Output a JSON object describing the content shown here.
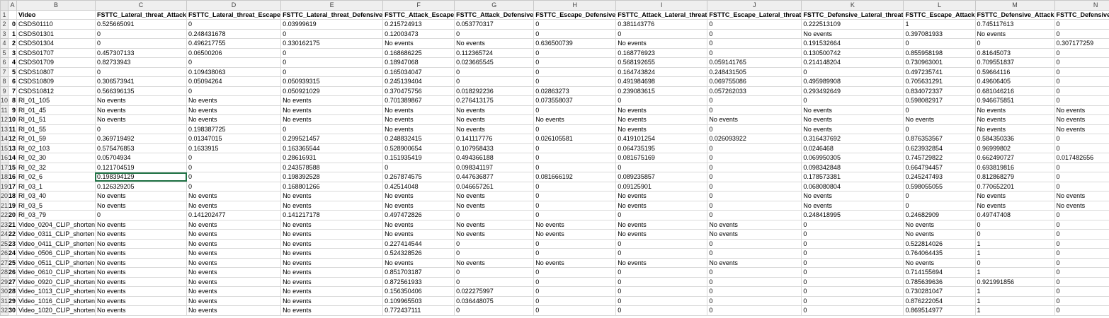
{
  "columns": [
    "A",
    "B",
    "C",
    "D",
    "E",
    "F",
    "G",
    "H",
    "I",
    "J",
    "K",
    "L",
    "M",
    "N"
  ],
  "header_row": [
    "",
    "Video",
    "FSTTC_Lateral_threat_Attack",
    "FSTTC_Lateral_threat_Escape",
    "FSTTC_Lateral_threat_Defensive",
    "FSTTC_Attack_Escape",
    "FSTTC_Attack_Defensive",
    "FSTTC_Escape_Defensive",
    "FSTTC_Attack_Lateral_threat",
    "FSTTC_Escape_Lateral_threat",
    "FSTTC_Defensive_Lateral_threat",
    "FSTTC_Escape_Attack",
    "FSTTC_Defensive_Attack",
    "FSTTC_Defensive_Escape"
  ],
  "rows": [
    [
      "0",
      "CSDS01110",
      "0.525665091",
      "0",
      "0.03999619",
      "0.215724913",
      "0.053770317",
      "0",
      "0.381143776",
      "0",
      "0.222513109",
      "1",
      "0.745117613",
      "0"
    ],
    [
      "1",
      "CSDS01301",
      "0",
      "0.248431678",
      "0",
      "0.12003473",
      "0",
      "0",
      "0",
      "0",
      "No events",
      "0.397081933",
      "No events",
      "0"
    ],
    [
      "2",
      "CSDS01304",
      "0",
      "0.496217755",
      "0.330162175",
      "No events",
      "No events",
      "0.636500739",
      "No events",
      "0",
      "0.191532664",
      "0",
      "0",
      "0.307177259"
    ],
    [
      "3",
      "CSDS01707",
      "0.457307133",
      "0.06500206",
      "0",
      "0.168686225",
      "0.112365724",
      "0",
      "0.168776923",
      "0",
      "0.130500742",
      "0.855958198",
      "0.81645073",
      "0"
    ],
    [
      "4",
      "CSDS01709",
      "0.82733943",
      "0",
      "0",
      "0.18947068",
      "0.023665545",
      "0",
      "0.568192655",
      "0.059141765",
      "0.214148204",
      "0.730963001",
      "0.709551837",
      "0"
    ],
    [
      "5",
      "CSDS10807",
      "0",
      "0.109438063",
      "0",
      "0.165034047",
      "0",
      "0",
      "0.164743824",
      "0.248431505",
      "0",
      "0.497235741",
      "0.59664116",
      "0"
    ],
    [
      "6",
      "CSDS10809",
      "0.306573941",
      "0.05094264",
      "0.050939315",
      "0.245139404",
      "0",
      "0",
      "0.491984698",
      "0.069755086",
      "0.495989908",
      "0.705631291",
      "0.49606405",
      "0"
    ],
    [
      "7",
      "CSDS10812",
      "0.566396135",
      "0",
      "0.050921029",
      "0.370475756",
      "0.018292236",
      "0.02863273",
      "0.239083615",
      "0.057262033",
      "0.293492649",
      "0.834072337",
      "0.681046216",
      "0"
    ],
    [
      "8",
      "RI_01_105",
      "No events",
      "No events",
      "No events",
      "0.701389867",
      "0.276413175",
      "0.073558037",
      "0",
      "0",
      "0",
      "0.598082917",
      "0.946675851",
      "0"
    ],
    [
      "9",
      "RI_01_45",
      "No events",
      "No events",
      "No events",
      "No events",
      "No events",
      "0",
      "No events",
      "0",
      "No events",
      "0",
      "No events",
      "No events"
    ],
    [
      "10",
      "RI_01_51",
      "No events",
      "No events",
      "No events",
      "No events",
      "No events",
      "No events",
      "No events",
      "No events",
      "No events",
      "No events",
      "No events",
      "No events"
    ],
    [
      "11",
      "RI_01_55",
      "0",
      "0.198387725",
      "0",
      "No events",
      "No events",
      "0",
      "No events",
      "0",
      "No events",
      "0",
      "No events",
      "No events"
    ],
    [
      "12",
      "RI_01_59",
      "0.369719492",
      "0.01347015",
      "0.299521457",
      "0.248832415",
      "0.141117776",
      "0.026105581",
      "0.419101254",
      "0.026093922",
      "0.316437692",
      "0.876353567",
      "0.584350336",
      "0"
    ],
    [
      "13",
      "RI_02_103",
      "0.575476853",
      "0.1633915",
      "0.163365544",
      "0.528900654",
      "0.107958433",
      "0",
      "0.064735195",
      "0",
      "0.0246468",
      "0.623932854",
      "0.96999802",
      "0"
    ],
    [
      "14",
      "RI_02_30",
      "0.05704934",
      "0",
      "0.28616931",
      "0.151935419",
      "0.494366188",
      "0",
      "0.081675169",
      "0",
      "0.069950305",
      "0.745729822",
      "0.662490727",
      "0.017482656"
    ],
    [
      "15",
      "RI_02_32",
      "0.121704519",
      "0",
      "0.243578588",
      "0",
      "0.098341197",
      "0",
      "0",
      "0",
      "0.098342848",
      "0.664794457",
      "0.693819816",
      "0"
    ],
    [
      "16",
      "RI_02_6",
      "0.198394129",
      "0",
      "0.198392528",
      "0.267874575",
      "0.447636877",
      "0.081666192",
      "0.089235857",
      "0",
      "0.178573381",
      "0.245247493",
      "0.812868279",
      "0"
    ],
    [
      "17",
      "RI_03_1",
      "0.126329205",
      "0",
      "0.168801266",
      "0.42514048",
      "0.046657261",
      "0",
      "0.09125901",
      "0",
      "0.068080804",
      "0.598055055",
      "0.770652201",
      "0"
    ],
    [
      "18",
      "RI_03_40",
      "No events",
      "No events",
      "No events",
      "No events",
      "No events",
      "0",
      "No events",
      "0",
      "No events",
      "0",
      "No events",
      "No events"
    ],
    [
      "19",
      "RI_03_5",
      "No events",
      "No events",
      "No events",
      "No events",
      "No events",
      "0",
      "No events",
      "0",
      "No events",
      "0",
      "No events",
      "No events"
    ],
    [
      "20",
      "RI_03_79",
      "0",
      "0.141202477",
      "0.141217178",
      "0.497472826",
      "0",
      "0",
      "0",
      "0",
      "0.248418995",
      "0.24682909",
      "0.49747408",
      "0"
    ],
    [
      "21",
      "Video_0204_CLIP_shorten",
      "No events",
      "No events",
      "No events",
      "No events",
      "No events",
      "No events",
      "No events",
      "No events",
      "0",
      "No events",
      "0",
      "0"
    ],
    [
      "22",
      "Video_0311_CLIP_shorten",
      "No events",
      "No events",
      "No events",
      "No events",
      "No events",
      "No events",
      "No events",
      "No events",
      "0",
      "No events",
      "0",
      "0"
    ],
    [
      "23",
      "Video_0411_CLIP_shorten",
      "No events",
      "No events",
      "No events",
      "0.227414544",
      "0",
      "0",
      "0",
      "0",
      "0",
      "0.522814026",
      "1",
      "0"
    ],
    [
      "24",
      "Video_0506_CLIP_shorten",
      "No events",
      "No events",
      "No events",
      "0.524328526",
      "0",
      "0",
      "0",
      "0",
      "0",
      "0.764064435",
      "1",
      "0"
    ],
    [
      "25",
      "Video_0511_CLIP_shorten",
      "No events",
      "No events",
      "No events",
      "No events",
      "No events",
      "No events",
      "No events",
      "No events",
      "0",
      "No events",
      "0",
      "0"
    ],
    [
      "26",
      "Video_0610_CLIP_shorten",
      "No events",
      "No events",
      "No events",
      "0.851703187",
      "0",
      "0",
      "0",
      "0",
      "0",
      "0.714155694",
      "1",
      "0"
    ],
    [
      "27",
      "Video_0920_CLIP_shorten",
      "No events",
      "No events",
      "No events",
      "0.872561933",
      "0",
      "0",
      "0",
      "0",
      "0",
      "0.785639636",
      "0.921991856",
      "0"
    ],
    [
      "28",
      "Video_1013_CLIP_shorten",
      "No events",
      "No events",
      "No events",
      "0.156350406",
      "0.022275997",
      "0",
      "0",
      "0",
      "0",
      "0.730281047",
      "1",
      "0"
    ],
    [
      "29",
      "Video_1016_CLIP_shorten",
      "No events",
      "No events",
      "No events",
      "0.109965503",
      "0.036448075",
      "0",
      "0",
      "0",
      "0",
      "0.876222054",
      "1",
      "0"
    ],
    [
      "30",
      "Video_1020_CLIP_shorten",
      "No events",
      "No events",
      "No events",
      "0.772437111",
      "0",
      "0",
      "0",
      "0",
      "0",
      "0.869514977",
      "1",
      "0"
    ]
  ]
}
